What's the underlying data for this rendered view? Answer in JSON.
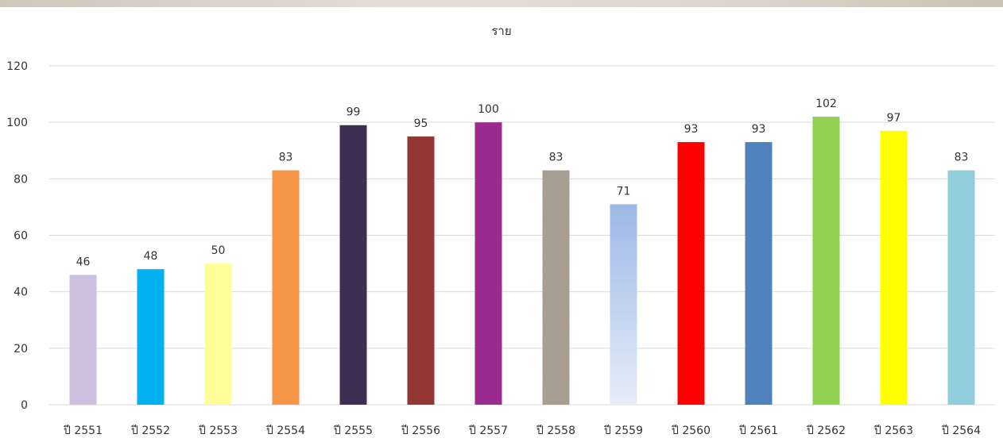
{
  "chart_data": {
    "type": "bar",
    "title": "ราย",
    "categories": [
      "ปี 2551",
      "ปี 2552",
      "ปี 2553",
      "ปี 2554",
      "ปี 2555",
      "ปี 2556",
      "ปี 2557",
      "ปี 2558",
      "ปี 2559",
      "ปี 2560",
      "ปี 2561",
      "ปี 2562",
      "ปี 2563",
      "ปี 2564"
    ],
    "values": [
      46,
      48,
      50,
      83,
      99,
      95,
      100,
      83,
      71,
      93,
      93,
      102,
      97,
      83
    ],
    "bar_colors": [
      "#cbc0dd",
      "#00b0f0",
      "#ffff99",
      "#f79646",
      "#3d2f52",
      "#943634",
      "#9b2b8f",
      "#a59a8e",
      "#a4bde6",
      "#ff0000",
      "#4f81bd",
      "#92d050",
      "#ffff00",
      "#92cddc"
    ],
    "ylim": [
      0,
      120
    ],
    "yticks": [
      0,
      20,
      40,
      60,
      80,
      100,
      120
    ],
    "grid": true,
    "legend": "none",
    "data_labels": true
  }
}
